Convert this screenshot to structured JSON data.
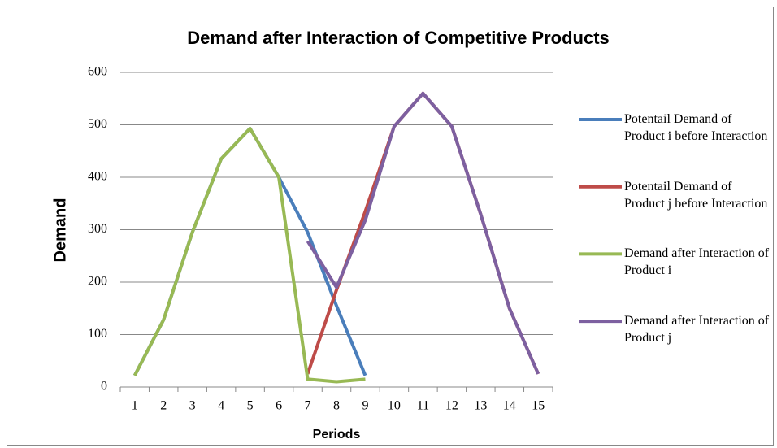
{
  "chart_data": {
    "type": "line",
    "title": "Demand after Interaction of Competitive Products",
    "x_label": "Periods",
    "y_label": "Demand",
    "categories": [
      "1",
      "2",
      "3",
      "4",
      "5",
      "6",
      "7",
      "8",
      "9",
      "10",
      "11",
      "12",
      "13",
      "14",
      "15"
    ],
    "series": [
      {
        "name": "Potentail Demand of Product i before Interaction",
        "color": "#4a7ebb",
        "values": [
          22,
          128,
          295,
          435,
          493,
          400,
          295,
          155,
          22,
          null,
          null,
          null,
          null,
          null,
          null
        ]
      },
      {
        "name": "Potentail Demand of Product j before Interaction",
        "color": "#be4b48",
        "values": [
          null,
          null,
          null,
          null,
          null,
          null,
          25,
          185,
          335,
          497,
          560,
          497,
          330,
          150,
          25
        ]
      },
      {
        "name": "Demand after Interaction of Product i",
        "color": "#98b954",
        "values": [
          22,
          128,
          295,
          435,
          493,
          400,
          15,
          10,
          15,
          null,
          null,
          null,
          null,
          null,
          null
        ]
      },
      {
        "name": "Demand after Interaction of Product j",
        "color": "#7d60a0",
        "values": [
          null,
          null,
          null,
          null,
          null,
          null,
          278,
          190,
          318,
          497,
          560,
          497,
          330,
          150,
          25
        ]
      }
    ],
    "ylim": [
      0,
      600
    ],
    "yticks": [
      0,
      100,
      200,
      300,
      400,
      500,
      600
    ],
    "grid": true,
    "legend": "right"
  }
}
